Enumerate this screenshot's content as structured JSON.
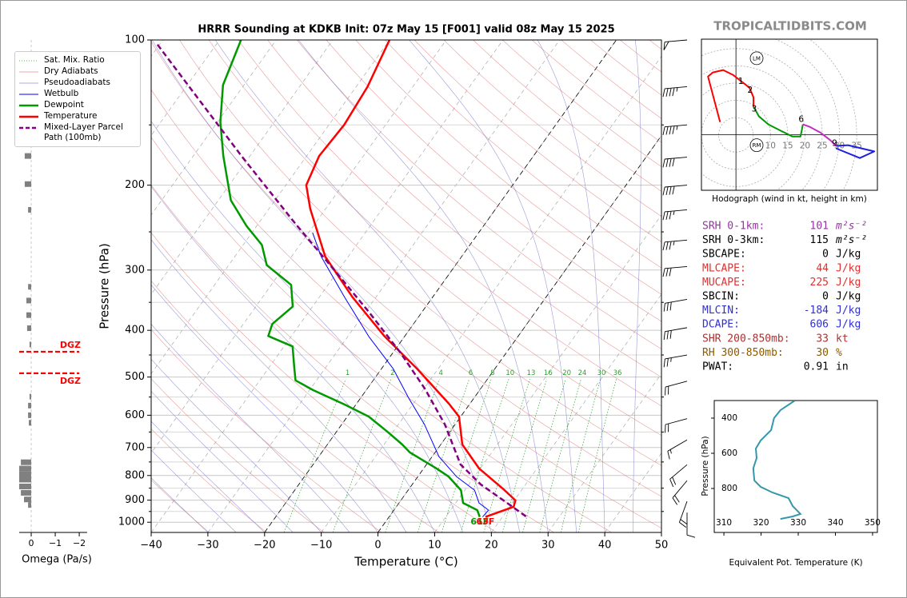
{
  "site": "TROPICALTIDBITS.COM",
  "chart_data": [
    {
      "type": "skewt",
      "title": "HRRR Sounding at KDKB Init: 07z May 15 [F001] valid 08z May 15 2025",
      "xlabel": "Temperature (°C)",
      "ylabel": "Pressure (hPa)",
      "xlim": [
        -40,
        50
      ],
      "ylim": [
        1050,
        100
      ],
      "log_scale_y": true,
      "grid": true,
      "xticks": [
        {
          "value": -40,
          "label": "−40"
        },
        {
          "value": -30,
          "label": "−30"
        },
        {
          "value": -20,
          "label": "−20"
        },
        {
          "value": -10,
          "label": "−10"
        },
        0,
        10,
        20,
        30,
        40,
        50
      ],
      "yticks": [
        100,
        200,
        300,
        400,
        500,
        600,
        700,
        800,
        900,
        1000
      ],
      "minor_yticks": [
        150,
        250,
        350,
        450,
        550,
        650,
        750,
        850,
        950
      ],
      "highlight_isotherms": [
        -20,
        0
      ],
      "mixing_ratio": {
        "name": "Sat. Mix. Ratio",
        "color": "#2ca02c",
        "values": [
          1,
          2,
          4,
          6,
          8,
          10,
          13,
          16,
          20,
          24,
          30,
          36
        ]
      },
      "dry_adiabats": {
        "name": "Dry Adiabats",
        "color": "#e07070"
      },
      "pseudoadiabats": {
        "name": "Pseudoadiabats",
        "color": "#7070c8"
      },
      "series": [
        {
          "name": "Wetbulb",
          "color": "#0000ff",
          "style": "thin",
          "pressure": [
            975,
            944,
            912,
            858,
            804,
            731,
            627,
            553,
            480,
            412,
            341,
            281,
            251
          ],
          "values": [
            16.5,
            16.7,
            14.1,
            11.7,
            6.8,
            1.2,
            -5.4,
            -11.5,
            -18.0,
            -26.3,
            -35.6,
            -44.8,
            -49.3
          ]
        },
        {
          "name": "Dewpoint",
          "color": "#009900",
          "style": "thick",
          "pressure": [
            975,
            944,
            912,
            858,
            804,
            774,
            717,
            690,
            652,
            604,
            570,
            532,
            508,
            480,
            432,
            411,
            388,
            357,
            322,
            293,
            266,
            243,
            215,
            174,
            148,
            124,
            100
          ],
          "values": [
            16.0,
            14.7,
            11.3,
            9.3,
            5.4,
            2.3,
            -4.4,
            -6.8,
            -10.7,
            -16.2,
            -22.0,
            -29.4,
            -33.7,
            -35.4,
            -38.5,
            -44.1,
            -44.9,
            -43.5,
            -46.5,
            -53.3,
            -56.7,
            -61.8,
            -67.8,
            -74.7,
            -79.5,
            -83.7,
            -86.2
          ]
        },
        {
          "name": "Temperature",
          "color": "#ff0000",
          "style": "thick",
          "pressure": [
            975,
            929,
            901,
            858,
            774,
            690,
            604,
            568,
            480,
            412,
            341,
            281,
            224,
            200,
            174,
            150,
            125,
            100
          ],
          "values": [
            17.0,
            20.7,
            20.2,
            17.0,
            9.8,
            3.8,
            -0.3,
            -3.7,
            -13.8,
            -23.5,
            -34.2,
            -44.1,
            -52.7,
            -56.4,
            -57.8,
            -57.3,
            -58.0,
            -60.0
          ]
        },
        {
          "name": "Mixed-Layer Parcel Path (100mb)",
          "color": "#800080",
          "style": "dashed",
          "pressure": [
            973,
            929,
            835,
            759,
            627,
            528,
            445,
            367,
            304,
            242,
            174,
            101
          ],
          "values": [
            24.1,
            20.5,
            12.1,
            6.0,
            -1.8,
            -9.9,
            -18.7,
            -29.3,
            -40.0,
            -53.1,
            -71.5,
            -101.0
          ]
        }
      ],
      "surface_labels": [
        {
          "series": 1,
          "text": "61F"
        },
        {
          "series": 2,
          "text": "63F"
        }
      ],
      "winds": {
        "pressure": [
          100,
          125,
          150,
          175,
          200,
          225,
          260,
          295,
          345,
          395,
          450,
          510,
          610,
          675,
          760,
          820,
          905,
          955
        ],
        "direction": [
          265,
          265,
          265,
          265,
          265,
          265,
          265,
          265,
          260,
          260,
          260,
          255,
          255,
          240,
          230,
          220,
          200,
          180
        ],
        "speed": [
          50,
          45,
          45,
          40,
          40,
          35,
          35,
          30,
          30,
          30,
          25,
          20,
          20,
          15,
          20,
          20,
          20,
          10
        ]
      }
    },
    {
      "type": "omega",
      "xlabel": "Omega (Pa/s)",
      "xlim": [
        0.5,
        -2.33
      ],
      "ylim": [
        1050,
        100
      ],
      "log_scale_y": true,
      "xticks": [
        0,
        {
          "value": -1,
          "label": "−1"
        },
        {
          "value": -2,
          "label": "−2"
        }
      ],
      "color": "#808080",
      "pressure": [
        150,
        174,
        199,
        225,
        325,
        347,
        372,
        396,
        428,
        549,
        573,
        600,
        622,
        751,
        774,
        795,
        816,
        843,
        869,
        897,
        921
      ],
      "values": [
        0.2,
        0.27,
        0.27,
        0.13,
        0.13,
        0.2,
        0.2,
        0.17,
        0.07,
        0.07,
        0.13,
        0.13,
        0.1,
        0.43,
        0.5,
        0.5,
        0.5,
        0.5,
        0.43,
        0.3,
        0.13
      ],
      "dgz": [
        {
          "pressure": 443,
          "label": "DGZ"
        },
        {
          "pressure": 491,
          "label": "DGZ"
        }
      ],
      "dgz_color": "#ff0000"
    },
    {
      "type": "hodograph",
      "caption": "Hodograph (wind in kt, height in km)",
      "xlim": [
        -10,
        41
      ],
      "ylim": [
        -16,
        27.6
      ],
      "ring_labels": [
        5,
        10,
        15,
        20,
        25,
        30,
        35
      ],
      "segments": [
        {
          "color": "#ff0000",
          "u": [
            -4.6,
            -8.1,
            -6.7,
            -3.7,
            -0.9,
            2.1,
            3.9,
            5.1,
            5.1
          ],
          "v": [
            3.7,
            16.8,
            18.0,
            18.7,
            17.3,
            15.0,
            13.6,
            10.8,
            8.1
          ]
        },
        {
          "color": "#009900",
          "u": [
            5.1,
            6.7,
            9.4,
            12.9,
            16.4,
            18.7,
            19.1,
            19.4
          ],
          "v": [
            8.1,
            5.3,
            3.0,
            1.2,
            -0.5,
            -0.5,
            1.4,
            3.0
          ]
        },
        {
          "color": "#c030c0",
          "u": [
            19.4,
            21.4,
            24.4,
            27.4,
            29.0
          ],
          "v": [
            3.0,
            2.3,
            0.7,
            -1.6,
            -3.2
          ]
        },
        {
          "color": "#1f1fe0",
          "u": [
            29.0,
            32.5,
            40.1,
            35.9,
            29.0
          ],
          "v": [
            -3.2,
            -3.0,
            -4.8,
            -6.7,
            -3.9
          ]
        }
      ],
      "height_labels": [
        {
          "text": "1",
          "u": 2.1,
          "v": 14.7
        },
        {
          "text": "2",
          "u": 4.8,
          "v": 12.2
        },
        {
          "text": "3",
          "u": 6.0,
          "v": 6.7
        },
        {
          "text": "6",
          "u": 19.6,
          "v": 3.7
        },
        {
          "text": "9",
          "u": 29.3,
          "v": -3.2
        }
      ],
      "markers": [
        {
          "text": "LM",
          "u": 6.0,
          "v": 22.1
        },
        {
          "text": "RM",
          "u": 6.0,
          "v": -3.0
        }
      ]
    },
    {
      "type": "profile",
      "xlabel": "Equivalent Pot. Temperature (K)",
      "ylabel": "Pressure (hPa)",
      "xlim": [
        307.4,
        351.3
      ],
      "ylim": [
        1050,
        300
      ],
      "xticks": [
        310,
        320,
        330,
        340,
        350
      ],
      "yticks": [
        400,
        600,
        800
      ],
      "color": "#3399aa",
      "pressure": [
        300,
        355,
        400,
        468,
        527,
        573,
        627,
        686,
        755,
        791,
        823,
        855,
        900,
        945,
        959,
        973
      ],
      "values": [
        329.1,
        325.2,
        323.5,
        322.7,
        319.9,
        318.6,
        318.8,
        317.9,
        318.2,
        319.9,
        323.1,
        327.4,
        328.5,
        330.6,
        328.5,
        325.2
      ]
    }
  ],
  "parameters": [
    {
      "label": "SRH 0-1km:",
      "value": 101,
      "unit": "m²s⁻²",
      "color": "#9b2fa8"
    },
    {
      "label": "SRH 0-3km:",
      "value": 115,
      "unit": "m²s⁻²",
      "color": "#000000"
    },
    {
      "label": "SBCAPE:",
      "value": 0,
      "unit": "J/kg",
      "color": "#000000"
    },
    {
      "label": "MLCAPE:",
      "value": 44,
      "unit": "J/kg",
      "color": "#e03030"
    },
    {
      "label": "MUCAPE:",
      "value": 225,
      "unit": "J/kg",
      "color": "#e03030"
    },
    {
      "label": "SBCIN:",
      "value": 0,
      "unit": "J/kg",
      "color": "#000000"
    },
    {
      "label": "MLCIN:",
      "value": -184,
      "unit": "J/kg",
      "color": "#3030d0"
    },
    {
      "label": "DCAPE:",
      "value": 606,
      "unit": "J/kg",
      "color": "#3030d0"
    },
    {
      "label": "SHR 200-850mb:",
      "value": 33,
      "unit": "kt",
      "color": "#a83232"
    },
    {
      "label": "RH 300-850mb:",
      "value": 30,
      "unit": "%",
      "color": "#8b5a00"
    },
    {
      "label": "PWAT:",
      "value": 0.91,
      "unit": "in",
      "color": "#000000"
    }
  ]
}
